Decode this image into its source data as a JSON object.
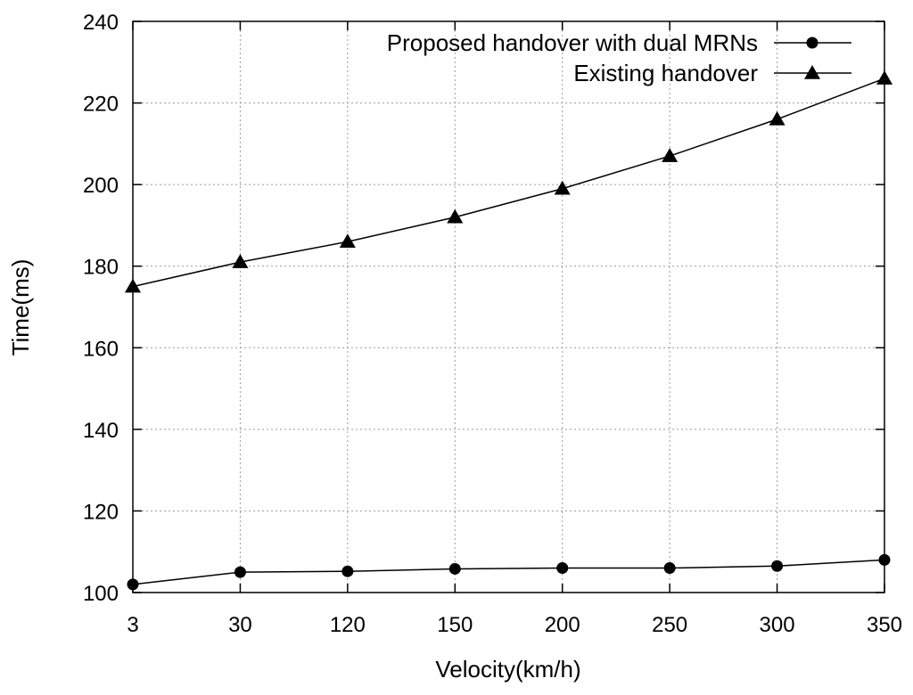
{
  "chart_data": {
    "type": "line",
    "title": "",
    "xlabel": "Velocity(km/h)",
    "ylabel": "Time(ms)",
    "categories": [
      "3",
      "30",
      "120",
      "150",
      "200",
      "250",
      "300",
      "350"
    ],
    "ylim": [
      100,
      240
    ],
    "yticks": [
      "100",
      "120",
      "140",
      "160",
      "180",
      "200",
      "220",
      "240"
    ],
    "grid": true,
    "legend_position": "top-right",
    "series": [
      {
        "name": "Proposed handover with dual MRNs",
        "marker": "circle",
        "color": "#000000",
        "values": [
          102,
          105,
          105.2,
          105.8,
          106,
          106,
          106.5,
          108
        ]
      },
      {
        "name": "Existing handover",
        "marker": "triangle",
        "color": "#000000",
        "values": [
          175,
          181,
          186,
          192,
          199,
          207,
          216,
          226
        ]
      }
    ]
  }
}
